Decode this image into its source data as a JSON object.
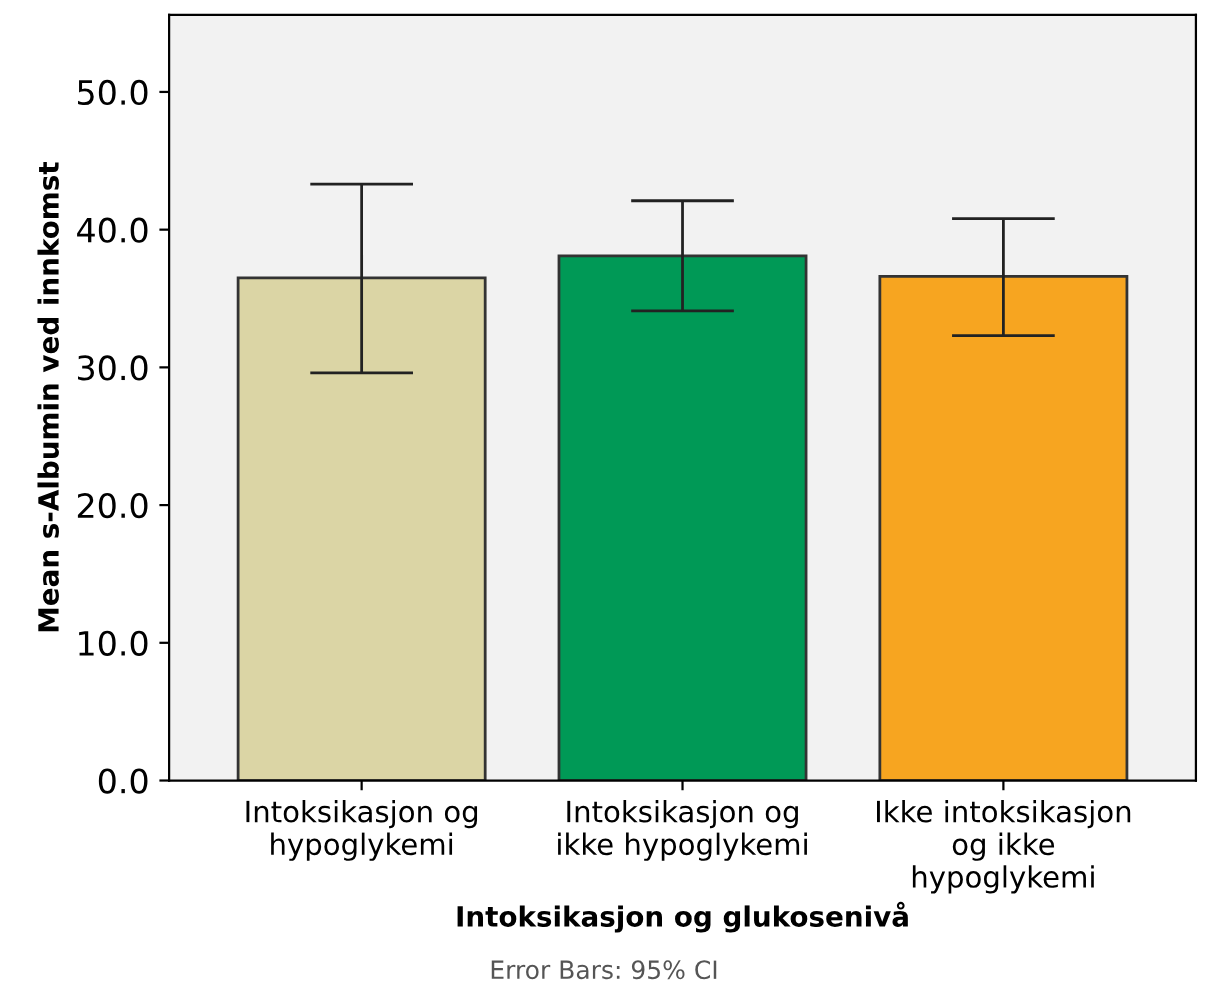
{
  "chart_data": {
    "type": "bar",
    "xlabel": "Intoksikasjon og glukosenivå",
    "ylabel": "Mean s-Albumin ved innkomst",
    "categories": [
      "Intoksikasjon og\nhypoglykemi",
      "Intoksikasjon og\nikke hypoglykemi",
      "Ikke intoksikasjon\nog ikke\nhypoglykemi"
    ],
    "values": [
      36.5,
      38.1,
      36.6
    ],
    "errors": [
      [
        29.6,
        43.3
      ],
      [
        34.1,
        42.1
      ],
      [
        32.3,
        40.8
      ]
    ],
    "colors": [
      "#dbd5a5",
      "#009956",
      "#f7a520"
    ],
    "ylim": [
      0,
      55.6
    ],
    "yticks": [
      {
        "value": 0,
        "label": "0.0"
      },
      {
        "value": 10,
        "label": "10.0"
      },
      {
        "value": 20,
        "label": "20.0"
      },
      {
        "value": 30,
        "label": "30.0"
      },
      {
        "value": 40,
        "label": "40.0"
      },
      {
        "value": 50,
        "label": "50.0"
      }
    ],
    "annotations": [
      "Error Bars: 95% CI"
    ],
    "grid": false
  }
}
